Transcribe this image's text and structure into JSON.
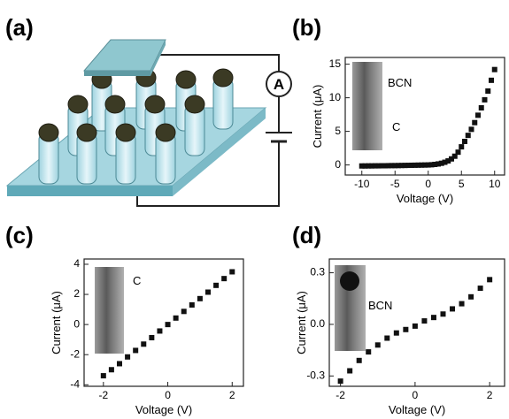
{
  "panel_labels": [
    "(a)",
    "(b)",
    "(c)",
    "(d)"
  ],
  "diagram": {
    "meter_label": "A"
  },
  "chart_data": [
    {
      "type": "scatter",
      "xlabel": "Voltage (V)",
      "ylabel": "Current (μA)",
      "annotations": [
        "BCN",
        "C"
      ],
      "color": "#111111",
      "x": [
        -10,
        -9.5,
        -9,
        -8.5,
        -8,
        -7.5,
        -7,
        -6.5,
        -6,
        -5.5,
        -5,
        -4.5,
        -4,
        -3.5,
        -3,
        -2.5,
        -2,
        -1.5,
        -1,
        -0.5,
        0,
        0.5,
        1,
        1.5,
        2,
        2.5,
        3,
        3.5,
        4,
        4.5,
        5,
        5.5,
        6,
        6.5,
        7,
        7.5,
        8,
        8.5,
        9,
        9.5,
        10
      ],
      "values": [
        -0.15,
        -0.15,
        -0.14,
        -0.14,
        -0.13,
        -0.13,
        -0.12,
        -0.12,
        -0.11,
        -0.1,
        -0.1,
        -0.09,
        -0.08,
        -0.07,
        -0.06,
        -0.05,
        -0.04,
        -0.03,
        -0.02,
        -0.01,
        0,
        0.03,
        0.08,
        0.15,
        0.25,
        0.4,
        0.6,
        0.9,
        1.3,
        1.9,
        2.7,
        3.5,
        4.4,
        5.3,
        6.3,
        7.4,
        8.5,
        9.7,
        11.0,
        12.6,
        14.2
      ],
      "xlim": [
        -12.5,
        11.5
      ],
      "ylim": [
        -1.5,
        16
      ],
      "xticks": [
        -10,
        -5,
        0,
        5,
        10
      ],
      "yticks": [
        0,
        5,
        10,
        15
      ]
    },
    {
      "type": "scatter",
      "xlabel": "Voltage (V)",
      "ylabel": "Current (μA)",
      "annotations": [
        "C"
      ],
      "color": "#111111",
      "x": [
        -2,
        -1.75,
        -1.5,
        -1.25,
        -1,
        -0.75,
        -0.5,
        -0.25,
        0,
        0.25,
        0.5,
        0.75,
        1,
        1.25,
        1.5,
        1.75,
        2
      ],
      "values": [
        -3.4,
        -3.0,
        -2.6,
        -2.15,
        -1.72,
        -1.3,
        -0.87,
        -0.43,
        0,
        0.43,
        0.87,
        1.3,
        1.72,
        2.15,
        2.6,
        3.05,
        3.5
      ],
      "xlim": [
        -2.6,
        2.35
      ],
      "ylim": [
        -4.1,
        4.35
      ],
      "xticks": [
        -2,
        0,
        2
      ],
      "yticks": [
        -4,
        -2,
        0,
        2,
        4
      ]
    },
    {
      "type": "scatter",
      "xlabel": "Voltage (V)",
      "ylabel": "Current (μA)",
      "annotations": [
        "BCN"
      ],
      "color": "#111111",
      "x": [
        -2,
        -1.75,
        -1.5,
        -1.25,
        -1,
        -0.75,
        -0.5,
        -0.25,
        0,
        0.25,
        0.5,
        0.75,
        1,
        1.25,
        1.5,
        1.75,
        2
      ],
      "values": [
        -0.33,
        -0.27,
        -0.21,
        -0.16,
        -0.12,
        -0.08,
        -0.05,
        -0.03,
        -0.01,
        0.02,
        0.04,
        0.06,
        0.09,
        0.12,
        0.16,
        0.21,
        0.26
      ],
      "xlim": [
        -2.3,
        2.4
      ],
      "ylim": [
        -0.36,
        0.38
      ],
      "xticks": [
        -2,
        0,
        2
      ],
      "yticks": [
        -0.3,
        {
          "value": 0,
          "label": "0.0"
        },
        0.3
      ]
    }
  ]
}
